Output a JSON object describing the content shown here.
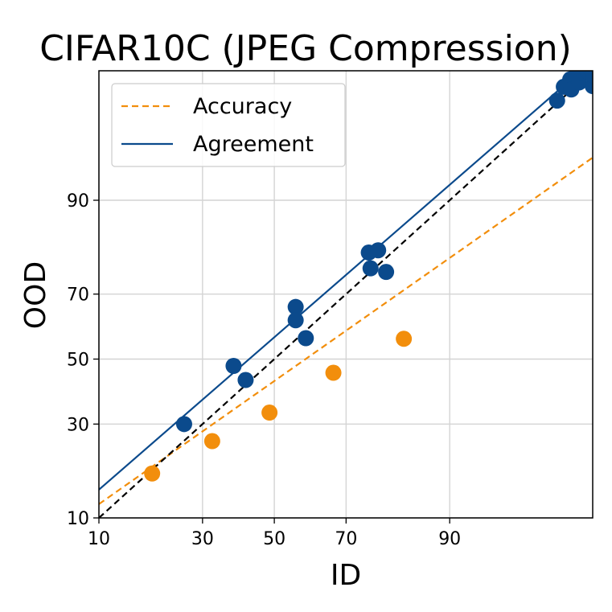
{
  "chart_data": {
    "type": "scatter",
    "title": "CIFAR10C (JPEG Compression)",
    "xlabel": "ID",
    "ylabel": "OOD",
    "xlim": [
      10,
      99
    ],
    "ylim": [
      10,
      99
    ],
    "scale": "probit",
    "xticks": [
      10,
      30,
      50,
      70,
      90
    ],
    "yticks": [
      10,
      30,
      50,
      70,
      90
    ],
    "grid": true,
    "legend_position": "top-left",
    "diagonal": {
      "style": "dashed",
      "color": "#000000"
    },
    "series": [
      {
        "name": "Accuracy",
        "color": "#f28e0c",
        "line_style": "dashed",
        "fit": [
          [
            10,
            12.1
          ],
          [
            99,
            94.8
          ]
        ],
        "points": [
          {
            "x": 18.6,
            "y": 17.8
          },
          {
            "x": 32.5,
            "y": 25.4
          },
          {
            "x": 48.6,
            "y": 33.3
          },
          {
            "x": 66.7,
            "y": 45.6
          },
          {
            "x": 82.8,
            "y": 56.5
          }
        ]
      },
      {
        "name": "Agreement",
        "color": "#0b4a8c",
        "line_style": "solid",
        "fit": [
          [
            10,
            14.6
          ],
          [
            99,
            99.2
          ]
        ],
        "points": [
          {
            "x": 25.5,
            "y": 30.0
          },
          {
            "x": 38.3,
            "y": 47.8
          },
          {
            "x": 41.7,
            "y": 43.3
          },
          {
            "x": 56.2,
            "y": 66.3
          },
          {
            "x": 56.2,
            "y": 62.3
          },
          {
            "x": 59.1,
            "y": 56.7
          },
          {
            "x": 75.5,
            "y": 80.5
          },
          {
            "x": 75.9,
            "y": 76.8
          },
          {
            "x": 77.6,
            "y": 81.0
          },
          {
            "x": 79.3,
            "y": 75.9
          },
          {
            "x": 98.06,
            "y": 98.15
          },
          {
            "x": 98.28,
            "y": 98.6
          },
          {
            "x": 98.47,
            "y": 98.8
          },
          {
            "x": 98.5,
            "y": 98.52
          },
          {
            "x": 98.62,
            "y": 98.9
          },
          {
            "x": 98.7,
            "y": 98.72
          },
          {
            "x": 98.75,
            "y": 98.96
          },
          {
            "x": 98.9,
            "y": 98.98
          },
          {
            "x": 98.95,
            "y": 99.05
          },
          {
            "x": 98.99,
            "y": 99.15
          },
          {
            "x": 99.0,
            "y": 98.62
          },
          {
            "x": 99.0,
            "y": 98.9
          }
        ]
      }
    ]
  }
}
